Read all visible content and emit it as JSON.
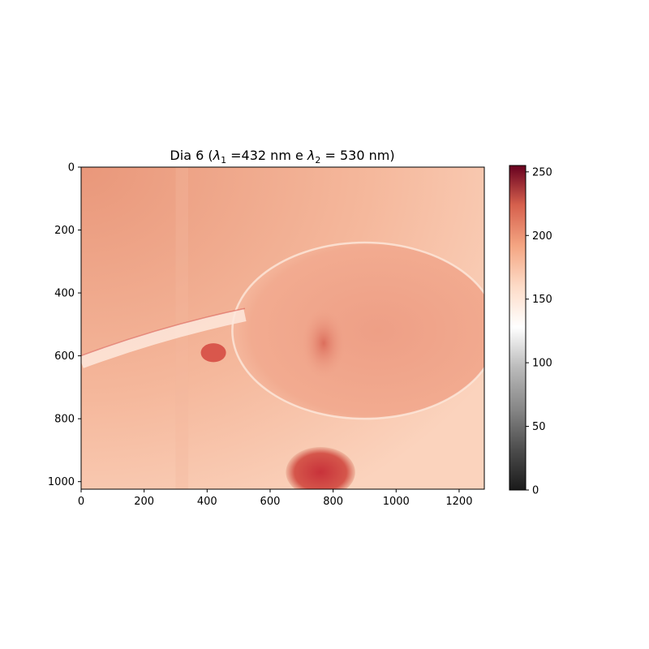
{
  "chart_data": {
    "type": "heatmap",
    "title": "Dia 6 (λ₁ =432 nm e λ₂ = 530 nm)",
    "title_parts": {
      "prefix": "Dia 6 (",
      "lambda": "λ",
      "sub1": "1",
      "mid": " =432 nm e ",
      "sub2": "2",
      "suffix": " = 530 nm)"
    },
    "xlabel": "",
    "ylabel": "",
    "xlim": [
      0,
      1280
    ],
    "ylim": [
      1024,
      0
    ],
    "x_ticks": [
      0,
      200,
      400,
      600,
      800,
      1000,
      1200
    ],
    "y_ticks": [
      0,
      200,
      400,
      600,
      800,
      1000
    ],
    "colormap": "RdGy_r",
    "colorbar": {
      "range": [
        0,
        255
      ],
      "ticks": [
        0,
        50,
        100,
        150,
        200,
        250
      ],
      "stops": [
        {
          "value": 0,
          "color": "#1a1a1a"
        },
        {
          "value": 32,
          "color": "#4d4d4d"
        },
        {
          "value": 64,
          "color": "#878787"
        },
        {
          "value": 96,
          "color": "#bababa"
        },
        {
          "value": 128,
          "color": "#ffffff"
        },
        {
          "value": 160,
          "color": "#fddbc7"
        },
        {
          "value": 192,
          "color": "#f4a582"
        },
        {
          "value": 224,
          "color": "#d6604d"
        },
        {
          "value": 255,
          "color": "#67001f"
        }
      ]
    },
    "image_content": {
      "background_value": 172,
      "features": [
        {
          "name": "head-body",
          "center": [
            900,
            520
          ],
          "radii": [
            420,
            280
          ],
          "value": 185
        },
        {
          "name": "eye-region",
          "center": [
            770,
            560
          ],
          "radii": [
            70,
            110
          ],
          "value": 200
        },
        {
          "name": "lower-organ",
          "center": [
            760,
            970
          ],
          "radii": [
            110,
            80
          ],
          "value": 215
        },
        {
          "name": "small-spot",
          "center": [
            420,
            590
          ],
          "radii": [
            40,
            30
          ],
          "value": 205
        },
        {
          "name": "stalk",
          "from": [
            0,
            620
          ],
          "to": [
            520,
            470
          ],
          "value": 150
        }
      ]
    }
  }
}
